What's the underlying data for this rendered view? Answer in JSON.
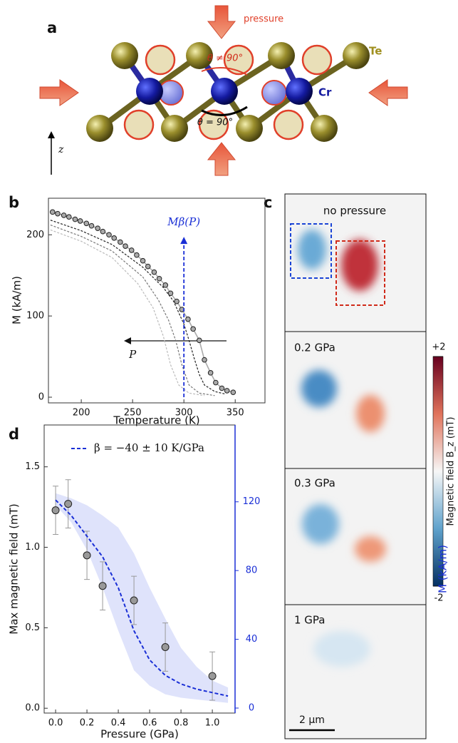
{
  "panel_a": {
    "label": "a",
    "pressure_label": "pressure",
    "theta_top": "θ ≠ 90°",
    "theta_bottom": "θ = 90°",
    "te_label": "Te",
    "cr_label": "Cr",
    "z_label": "z"
  },
  "chart_data": [
    {
      "type": "line",
      "label": "b",
      "xlabel": "Temperature (K)",
      "ylabel": "M (kA/m)",
      "xlim": [
        168,
        379
      ],
      "ylim": [
        -7,
        245
      ],
      "xticks": [
        200,
        250,
        300,
        350
      ],
      "yticks": [
        0,
        100,
        200
      ],
      "annotations": [
        {
          "text": "Mβ(P)",
          "x": 300,
          "y": 215,
          "color": "#1a2fd6"
        },
        {
          "text": "P",
          "x": 250,
          "y": 52,
          "color": "#111111"
        }
      ],
      "series": [
        {
          "style": "points",
          "color": "#aaaaaa",
          "x": [
            172,
            177,
            183,
            188,
            194,
            199,
            205,
            210,
            216,
            221,
            227,
            232,
            238,
            243,
            249,
            254,
            260,
            265,
            271,
            276,
            282,
            287,
            293,
            298,
            304,
            309,
            315,
            320,
            326,
            331,
            337,
            342,
            348
          ],
          "values": [
            228,
            226,
            224,
            222,
            219,
            217,
            214,
            211,
            208,
            204,
            200,
            196,
            191,
            186,
            181,
            175,
            168,
            161,
            154,
            146,
            138,
            128,
            118,
            108,
            96,
            84,
            70,
            46,
            30,
            18,
            11,
            8,
            6
          ]
        },
        {
          "style": "dashed",
          "color": "#222222",
          "x": [
            170,
            200,
            230,
            260,
            280,
            290,
            300,
            305,
            310,
            315,
            320,
            330,
            340
          ],
          "values": [
            218,
            205,
            188,
            160,
            135,
            118,
            90,
            70,
            48,
            28,
            15,
            7,
            4
          ]
        },
        {
          "style": "dashed",
          "color": "#777777",
          "x": [
            170,
            200,
            230,
            260,
            275,
            285,
            292,
            298,
            305,
            315,
            330
          ],
          "values": [
            212,
            198,
            180,
            148,
            120,
            95,
            70,
            40,
            15,
            5,
            2
          ]
        },
        {
          "style": "dashed",
          "color": "#bbbbbb",
          "x": [
            170,
            200,
            230,
            255,
            270,
            280,
            287,
            295,
            305,
            320
          ],
          "values": [
            206,
            192,
            172,
            140,
            110,
            75,
            40,
            15,
            5,
            2
          ]
        }
      ]
    },
    {
      "type": "scatter",
      "label": "d",
      "xlabel": "Pressure (GPa)",
      "ylabel": "Max magnetic field (mT)",
      "y2label": "M (kA/m)",
      "xlim": [
        -0.073,
        1.145
      ],
      "ylim": [
        -0.03,
        1.76
      ],
      "y2lim": [
        -2.9,
        164.7
      ],
      "xticks": [
        {
          "value": 0,
          "label": "0.0"
        },
        0.2,
        0.4,
        0.6,
        0.8,
        {
          "value": 1,
          "label": "1.0"
        }
      ],
      "yticks": [
        {
          "value": 0,
          "label": "0.0"
        },
        0.5,
        {
          "value": 1,
          "label": "1.0"
        },
        1.5
      ],
      "y2ticks": [
        0,
        40,
        80,
        120
      ],
      "band": {
        "color": "#dfe3fb",
        "x": [
          0,
          0.1,
          0.2,
          0.3,
          0.4,
          0.5,
          0.6,
          0.7,
          0.8,
          0.9,
          1.0,
          1.1
        ],
        "upper": [
          125,
          122,
          118,
          112,
          105,
          90,
          70,
          52,
          35,
          24,
          16,
          12
        ],
        "lower": [
          118,
          108,
          92,
          70,
          45,
          22,
          13,
          8,
          6,
          5,
          4,
          3
        ]
      },
      "series": [
        {
          "style": "points",
          "color": "#aaaaaa",
          "x": [
            0,
            0.08,
            0.2,
            0.3,
            0.5,
            0.7,
            1.0
          ],
          "values": [
            1.23,
            1.27,
            0.95,
            0.76,
            0.67,
            0.38,
            0.2
          ],
          "errors": [
            0.15,
            0.15,
            0.15,
            0.15,
            0.15,
            0.15,
            0.15
          ]
        },
        {
          "style": "dashed",
          "axis": "y2",
          "color": "#1a2fd6",
          "name": "β = −40 ± 10 K/GPa",
          "x": [
            0,
            0.1,
            0.2,
            0.3,
            0.4,
            0.5,
            0.6,
            0.7,
            0.8,
            0.9,
            1.0,
            1.1
          ],
          "values": [
            121,
            112,
            100,
            88,
            70,
            45,
            28,
            19,
            14,
            11,
            9,
            7
          ]
        }
      ]
    }
  ],
  "panel_c": {
    "label": "c",
    "maps": [
      "no pressure",
      "0.2 GPa",
      "0.3 GPa",
      "1 GPa"
    ],
    "colorbar_label": "Magnetic field B_z (mT)",
    "clim": [
      -2,
      2
    ],
    "colorbar_ticks": [
      {
        "value": 2,
        "label": "+2"
      },
      -2
    ],
    "scale_bar": "2 µm"
  }
}
